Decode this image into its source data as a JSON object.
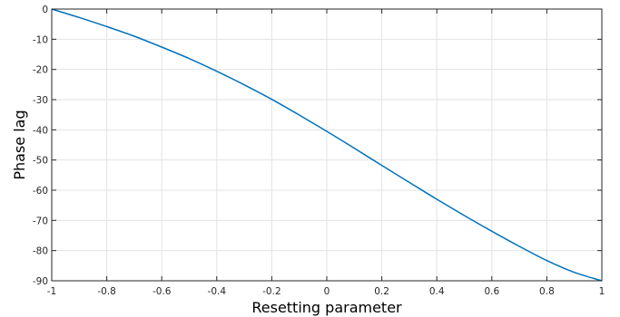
{
  "chart_data": {
    "type": "line",
    "title": "",
    "xlabel": "Resetting parameter",
    "ylabel": "Phase lag",
    "xlim": [
      -1,
      1
    ],
    "ylim": [
      -90,
      0
    ],
    "xticks": [
      -1,
      -0.8,
      -0.6,
      -0.4,
      -0.2,
      0,
      0.2,
      0.4,
      0.6,
      0.8,
      1
    ],
    "xtick_labels": [
      "-1",
      "-0.8",
      "-0.6",
      "-0.4",
      "-0.2",
      "0",
      "0.2",
      "0.4",
      "0.6",
      "0.8",
      "1"
    ],
    "yticks": [
      0,
      -10,
      -20,
      -30,
      -40,
      -50,
      -60,
      -70,
      -80,
      -90
    ],
    "ytick_labels": [
      "0",
      "-10",
      "-20",
      "-30",
      "-40",
      "-50",
      "-60",
      "-70",
      "-80",
      "-90"
    ],
    "grid": true,
    "legend": "none",
    "series": [
      {
        "color": "#0072BD",
        "x": [
          -1,
          -0.9,
          -0.8,
          -0.7,
          -0.6,
          -0.5,
          -0.4,
          -0.3,
          -0.2,
          -0.1,
          0,
          0.1,
          0.2,
          0.3,
          0.4,
          0.5,
          0.6,
          0.7,
          0.8,
          0.9,
          1
        ],
        "y": [
          0,
          -2.8,
          -5.8,
          -9.0,
          -12.6,
          -16.4,
          -20.6,
          -25.1,
          -29.9,
          -35.1,
          -40.5,
          -46.1,
          -51.8,
          -57.4,
          -63.0,
          -68.4,
          -73.6,
          -78.6,
          -83.3,
          -87.2,
          -90
        ]
      }
    ]
  }
}
